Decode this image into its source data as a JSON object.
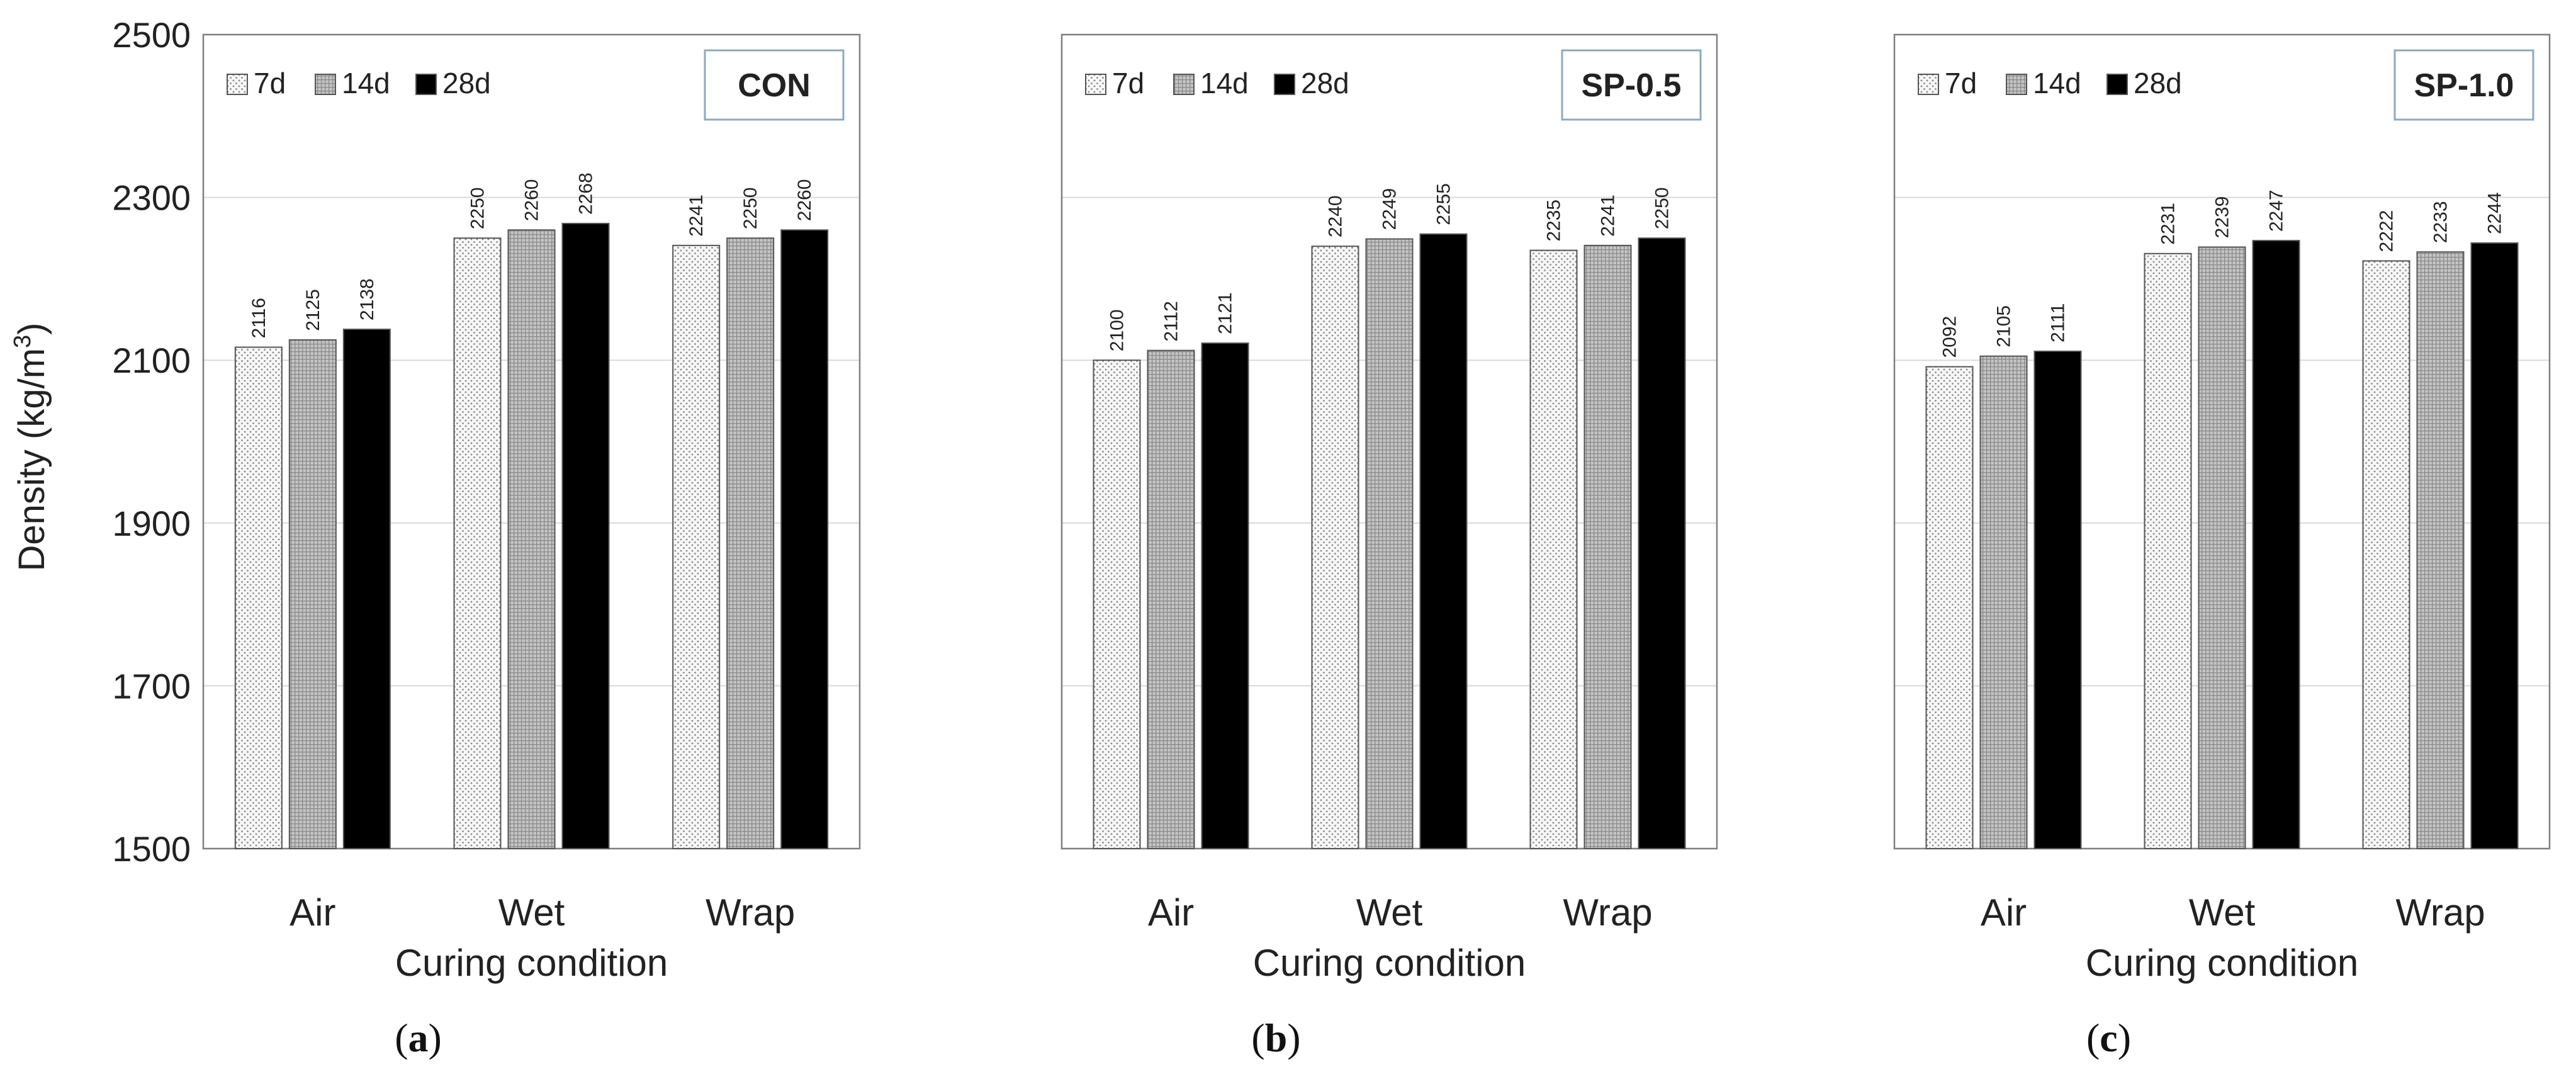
{
  "figure": {
    "y_axis_label": "Density (kg/m",
    "y_axis_label_sup": "3",
    "y_axis_label_close": ")",
    "colors": {
      "d7": "#f7f7f7",
      "d14": "#c4c4c4",
      "d28": "#000000",
      "grid": "#d9d9d9",
      "frame": "#7f7f7f",
      "label_box_border": "#8ea9c1"
    }
  },
  "chart_data": [
    {
      "type": "bar",
      "title": "CON",
      "caption_letter": "a",
      "xlabel": "Curing condition",
      "ylabel": "Density (kg/m3)",
      "categories": [
        "Air",
        "Wet",
        "Wrap"
      ],
      "ylim": [
        1500,
        2500
      ],
      "yticks": [
        1500,
        1700,
        1900,
        2100,
        2300,
        2500
      ],
      "grid": true,
      "legend_position": "top-left",
      "series": [
        {
          "name": "7d",
          "values": [
            2116,
            2250,
            2241
          ]
        },
        {
          "name": "14d",
          "values": [
            2125,
            2260,
            2250
          ]
        },
        {
          "name": "28d",
          "values": [
            2138,
            2268,
            2260
          ]
        }
      ]
    },
    {
      "type": "bar",
      "title": "SP-0.5",
      "caption_letter": "b",
      "xlabel": "Curing condition",
      "ylabel": "Density (kg/m3)",
      "categories": [
        "Air",
        "Wet",
        "Wrap"
      ],
      "ylim": [
        1500,
        2500
      ],
      "yticks": [
        1500,
        1700,
        1900,
        2100,
        2300,
        2500
      ],
      "grid": true,
      "legend_position": "top-left",
      "series": [
        {
          "name": "7d",
          "values": [
            2100,
            2240,
            2235
          ]
        },
        {
          "name": "14d",
          "values": [
            2112,
            2249,
            2241
          ]
        },
        {
          "name": "28d",
          "values": [
            2121,
            2255,
            2250
          ]
        }
      ]
    },
    {
      "type": "bar",
      "title": "SP-1.0",
      "caption_letter": "c",
      "xlabel": "Curing condition",
      "ylabel": "Density (kg/m3)",
      "categories": [
        "Air",
        "Wet",
        "Wrap"
      ],
      "ylim": [
        1500,
        2500
      ],
      "yticks": [
        1500,
        1700,
        1900,
        2100,
        2300,
        2500
      ],
      "grid": true,
      "legend_position": "top-left",
      "series": [
        {
          "name": "7d",
          "values": [
            2092,
            2231,
            2222
          ]
        },
        {
          "name": "14d",
          "values": [
            2105,
            2239,
            2233
          ]
        },
        {
          "name": "28d",
          "values": [
            2111,
            2247,
            2244
          ]
        }
      ]
    }
  ]
}
